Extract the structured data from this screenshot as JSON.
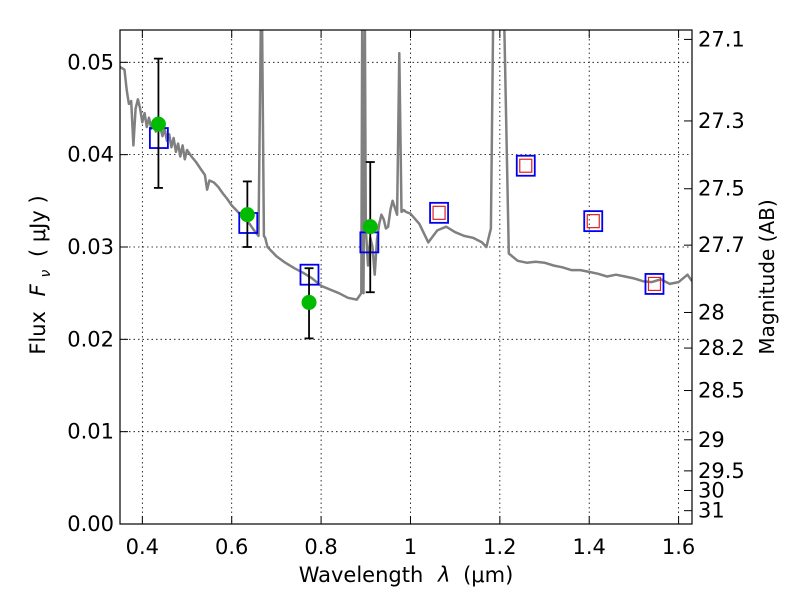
{
  "chart_data": {
    "type": "scatter",
    "title": "",
    "xlabel_text": "Wavelength",
    "xlabel_symbol": "λ",
    "xlabel_unit": "(μm)",
    "ylabel_text": "Flux",
    "ylabel_symbol": "F",
    "ylabel_subscript": "ν",
    "ylabel_unit": "( μJy )",
    "y2label": "Magnitude (AB)",
    "xlim": [
      0.35,
      1.63
    ],
    "ylim": [
      0.0,
      0.0535
    ],
    "x_ticks": [
      {
        "value": 0.4,
        "label": "0.4"
      },
      {
        "value": 0.6,
        "label": "0.6"
      },
      {
        "value": 0.8,
        "label": "0.8"
      },
      {
        "value": 1.0,
        "label": "1"
      },
      {
        "value": 1.2,
        "label": "1.2"
      },
      {
        "value": 1.4,
        "label": "1.4"
      },
      {
        "value": 1.6,
        "label": "1.6"
      }
    ],
    "y_ticks": [
      {
        "value": 0.0,
        "label": "0.00"
      },
      {
        "value": 0.01,
        "label": "0.01"
      },
      {
        "value": 0.02,
        "label": "0.02"
      },
      {
        "value": 0.03,
        "label": "0.03"
      },
      {
        "value": 0.04,
        "label": "0.04"
      },
      {
        "value": 0.05,
        "label": "0.05"
      }
    ],
    "y2_ticks": [
      {
        "mag": 27.1,
        "label": "27.1"
      },
      {
        "mag": 27.3,
        "label": "27.3"
      },
      {
        "mag": 27.5,
        "label": "27.5"
      },
      {
        "mag": 27.7,
        "label": "27.7"
      },
      {
        "mag": 28.0,
        "label": "28"
      },
      {
        "mag": 28.2,
        "label": "28.2"
      },
      {
        "mag": 28.5,
        "label": "28.5"
      },
      {
        "mag": 29.0,
        "label": "29"
      },
      {
        "mag": 29.5,
        "label": "29.5"
      },
      {
        "mag": 30.0,
        "label": "30"
      },
      {
        "mag": 31.0,
        "label": "31"
      }
    ],
    "grid": true,
    "colors": {
      "model": "#808080",
      "observed": "#00bb00",
      "errorbar": "#000000",
      "model_band_box": "#0000ee",
      "model_band_inner": "#dd2222"
    },
    "series": [
      {
        "kind": "line",
        "x": [
          0.35,
          0.36,
          0.365,
          0.37,
          0.375,
          0.38,
          0.385,
          0.39,
          0.395,
          0.4,
          0.405,
          0.41,
          0.415,
          0.42,
          0.425,
          0.43,
          0.435,
          0.44,
          0.445,
          0.45,
          0.455,
          0.46,
          0.465,
          0.47,
          0.475,
          0.48,
          0.485,
          0.49,
          0.495,
          0.5,
          0.51,
          0.52,
          0.53,
          0.54,
          0.545,
          0.55,
          0.56,
          0.57,
          0.58,
          0.59,
          0.6,
          0.61,
          0.62,
          0.63,
          0.64,
          0.65,
          0.66,
          0.665,
          0.668,
          0.672,
          0.675,
          0.68,
          0.7,
          0.72,
          0.74,
          0.76,
          0.78,
          0.8,
          0.82,
          0.84,
          0.86,
          0.88,
          0.89,
          0.892,
          0.895,
          0.898,
          0.9,
          0.905,
          0.91,
          0.915,
          0.92,
          0.925,
          0.93,
          0.935,
          0.94,
          0.945,
          0.95,
          0.955,
          0.96,
          0.97,
          0.975,
          0.98,
          0.985,
          0.99,
          1.0,
          1.02,
          1.04,
          1.06,
          1.08,
          1.1,
          1.12,
          1.14,
          1.16,
          1.17,
          1.18,
          1.185,
          1.19,
          1.2,
          1.21,
          1.22,
          1.24,
          1.26,
          1.28,
          1.3,
          1.32,
          1.34,
          1.36,
          1.38,
          1.4,
          1.42,
          1.44,
          1.46,
          1.48,
          1.5,
          1.52,
          1.54,
          1.56,
          1.58,
          1.6,
          1.62,
          1.63
        ],
        "y": [
          0.0495,
          0.0492,
          0.047,
          0.0455,
          0.0458,
          0.041,
          0.045,
          0.046,
          0.045,
          0.0435,
          0.0445,
          0.043,
          0.044,
          0.0428,
          0.0435,
          0.0425,
          0.044,
          0.043,
          0.042,
          0.0428,
          0.0415,
          0.0422,
          0.0408,
          0.0418,
          0.0403,
          0.0412,
          0.0398,
          0.041,
          0.0395,
          0.0405,
          0.0398,
          0.0392,
          0.0385,
          0.0378,
          0.0362,
          0.0372,
          0.037,
          0.0365,
          0.0358,
          0.0352,
          0.0345,
          0.034,
          0.0335,
          0.033,
          0.0325,
          0.0318,
          0.0312,
          0.054,
          0.054,
          0.0312,
          0.031,
          0.03,
          0.029,
          0.0283,
          0.0277,
          0.0272,
          0.0266,
          0.0258,
          0.0254,
          0.025,
          0.0245,
          0.0243,
          0.025,
          0.054,
          0.025,
          0.054,
          0.032,
          0.028,
          0.031,
          0.03,
          0.027,
          0.0308,
          0.0325,
          0.0335,
          0.033,
          0.032,
          0.0322,
          0.034,
          0.035,
          0.0335,
          0.051,
          0.0338,
          0.034,
          0.0338,
          0.0336,
          0.0325,
          0.0305,
          0.0318,
          0.0322,
          0.0316,
          0.0312,
          0.031,
          0.0305,
          0.03,
          0.032,
          0.054,
          0.054,
          0.054,
          0.054,
          0.0293,
          0.0285,
          0.0283,
          0.0284,
          0.0283,
          0.028,
          0.0278,
          0.0275,
          0.0275,
          0.0273,
          0.0271,
          0.0268,
          0.027,
          0.0268,
          0.0266,
          0.0263,
          0.0262,
          0.0265,
          0.026,
          0.0262,
          0.027,
          0.0263
        ]
      },
      {
        "kind": "model_band_squares",
        "x": [
          0.437,
          0.637,
          0.774,
          0.908,
          1.064,
          1.258,
          1.409,
          1.546
        ],
        "y": [
          0.0418,
          0.0326,
          0.027,
          0.0305,
          0.0337,
          0.0388,
          0.0328,
          0.026
        ],
        "inner": [
          false,
          false,
          false,
          false,
          true,
          true,
          true,
          true
        ]
      },
      {
        "kind": "observed_points",
        "x": [
          0.436,
          0.635,
          0.773,
          0.91
        ],
        "y": [
          0.0433,
          0.0335,
          0.024,
          0.0322
        ],
        "yerr_low": [
          0.0364,
          0.03,
          0.0201,
          0.0251
        ],
        "yerr_high": [
          0.0504,
          0.0371,
          0.0277,
          0.0392
        ]
      }
    ]
  }
}
